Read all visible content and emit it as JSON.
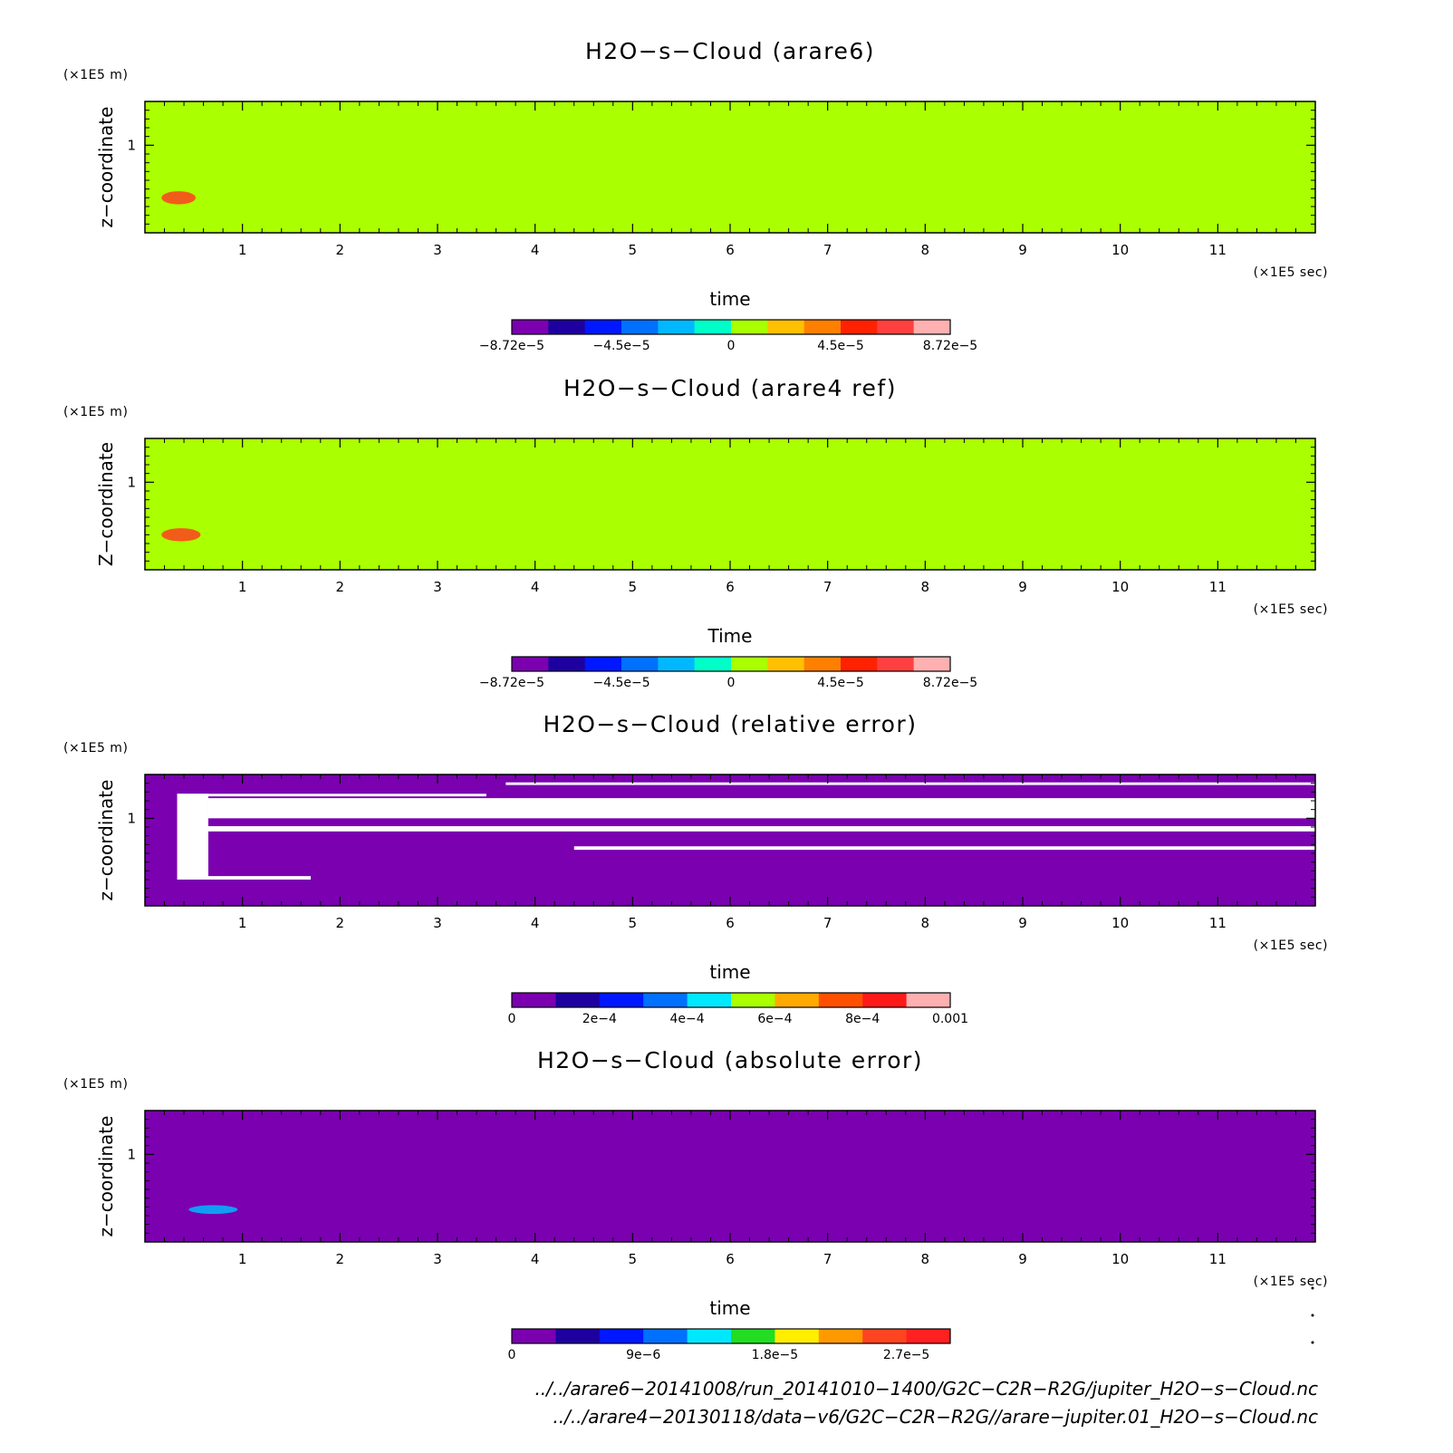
{
  "chart_data": [
    {
      "type": "heatmap",
      "title": "H2O−s−Cloud (arare6)",
      "xlabel": "time",
      "ylabel": "z−coordinate",
      "x_unit": "(×1E5 sec)",
      "y_unit": "(×1E5 m)",
      "xlim": [
        0,
        12
      ],
      "ylim": [
        0,
        1.5
      ],
      "x_ticks": [
        "1",
        "2",
        "3",
        "4",
        "5",
        "6",
        "7",
        "8",
        "9",
        "10",
        "11"
      ],
      "y_ticks": [
        "1"
      ],
      "background_level": "0",
      "background_color": "#aaff00",
      "features": [
        {
          "x": 0.17,
          "y": 0.4,
          "w": 0.35,
          "h": 0.15,
          "level": "4.5e−5 to 8.72e−5",
          "color": "#ff4020"
        }
      ],
      "colorbar": {
        "levels": 12,
        "colors": [
          "#7a00b0",
          "#1e00a0",
          "#0018ff",
          "#0070ff",
          "#00b8ff",
          "#00ffc8",
          "#aaff00",
          "#ffc000",
          "#ff7f00",
          "#ff2200",
          "#ff4040",
          "#ffb0b0"
        ],
        "tick_labels": [
          "−8.72e−5",
          "−4.5e−5",
          "0",
          "4.5e−5",
          "8.72e−5"
        ],
        "tick_at_level": [
          0,
          3,
          6,
          9,
          12
        ]
      }
    },
    {
      "type": "heatmap",
      "title": "H2O−s−Cloud (arare4 ref)",
      "xlabel": "Time",
      "ylabel": "Z−coordinate",
      "x_unit": "(×1E5 sec)",
      "y_unit": "(×1E5 m)",
      "xlim": [
        0,
        12
      ],
      "ylim": [
        0,
        1.5
      ],
      "x_ticks": [
        "1",
        "2",
        "3",
        "4",
        "5",
        "6",
        "7",
        "8",
        "9",
        "10",
        "11"
      ],
      "y_ticks": [
        "1"
      ],
      "background_level": "0",
      "background_color": "#aaff00",
      "features": [
        {
          "x": 0.17,
          "y": 0.4,
          "w": 0.4,
          "h": 0.15,
          "level": "4.5e−5 to 8.72e−5",
          "color": "#ff4020"
        }
      ],
      "colorbar": {
        "levels": 12,
        "colors": [
          "#7a00b0",
          "#1e00a0",
          "#0018ff",
          "#0070ff",
          "#00b8ff",
          "#00ffc8",
          "#aaff00",
          "#ffc000",
          "#ff7f00",
          "#ff2200",
          "#ff4040",
          "#ffb0b0"
        ],
        "tick_labels": [
          "−8.72e−5",
          "−4.5e−5",
          "0",
          "4.5e−5",
          "8.72e−5"
        ],
        "tick_at_level": [
          0,
          3,
          6,
          9,
          12
        ]
      }
    },
    {
      "type": "heatmap",
      "title": "H2O−s−Cloud (relative error)",
      "xlabel": "time",
      "ylabel": "z−coordinate",
      "x_unit": "(×1E5 sec)",
      "y_unit": "(×1E5 m)",
      "xlim": [
        0,
        12
      ],
      "ylim": [
        0,
        1.5
      ],
      "x_ticks": [
        "1",
        "2",
        "3",
        "4",
        "5",
        "6",
        "7",
        "8",
        "9",
        "10",
        "11"
      ],
      "y_ticks": [
        "1"
      ],
      "background_level": "0",
      "background_color": "#7a00b0",
      "blank_regions": [
        {
          "x0": 0.33,
          "x1": 3.5,
          "y0": 1.25,
          "y1": 1.28
        },
        {
          "x0": 0.33,
          "x1": 0.65,
          "y0": 0.3,
          "y1": 1.28
        },
        {
          "x0": 3.7,
          "x1": 12,
          "y0": 1.38,
          "y1": 1.41
        },
        {
          "x0": 0.65,
          "x1": 12,
          "y0": 1.0,
          "y1": 1.23
        },
        {
          "x0": 0.65,
          "x1": 12,
          "y0": 0.85,
          "y1": 0.91
        },
        {
          "x0": 4.4,
          "x1": 12,
          "y0": 0.64,
          "y1": 0.68
        },
        {
          "x0": 0.35,
          "x1": 1.7,
          "y0": 0.3,
          "y1": 0.34
        }
      ],
      "colorbar": {
        "levels": 10,
        "colors": [
          "#7a00b0",
          "#1e00a0",
          "#0018ff",
          "#0070ff",
          "#00e8ff",
          "#aaff00",
          "#ffaa00",
          "#ff5000",
          "#ff1a1a",
          "#ffb0b0"
        ],
        "tick_labels": [
          "0",
          "2e−4",
          "4e−4",
          "6e−4",
          "8e−4",
          "0.001"
        ],
        "tick_at_level": [
          0,
          2,
          4,
          6,
          8,
          10
        ]
      }
    },
    {
      "type": "heatmap",
      "title": "H2O−s−Cloud (absolute error)",
      "xlabel": "time",
      "ylabel": "z−coordinate",
      "x_unit": "(×1E5 sec)",
      "y_unit": "(×1E5 m)",
      "xlim": [
        0,
        12
      ],
      "ylim": [
        0,
        1.5
      ],
      "x_ticks": [
        "1",
        "2",
        "3",
        "4",
        "5",
        "6",
        "7",
        "8",
        "9",
        "10",
        "11"
      ],
      "y_ticks": [
        "1"
      ],
      "background_level": "0",
      "background_color": "#7a00b0",
      "features": [
        {
          "x": 0.45,
          "y": 0.37,
          "w": 0.5,
          "h": 0.1,
          "level": "9e−6 to 1.8e−5",
          "color": "#00b8ff"
        }
      ],
      "colorbar": {
        "levels": 10,
        "colors": [
          "#7a00b0",
          "#1e00a0",
          "#0018ff",
          "#0070ff",
          "#00e8ff",
          "#22dd22",
          "#ffee00",
          "#ff9900",
          "#ff4422",
          "#ff2020"
        ],
        "tick_labels": [
          "0",
          "9e−6",
          "1.8e−5",
          "2.7e−5"
        ],
        "tick_at_level": [
          0,
          3,
          6,
          9
        ]
      }
    }
  ],
  "footer": {
    "line1": "../../arare6−20141008/run_20141010−1400/G2C−C2R−R2G/jupiter_H2O−s−Cloud.nc",
    "line2": "../../arare4−20130118/data−v6/G2C−C2R−R2G//arare−jupiter.01_H2O−s−Cloud.nc"
  }
}
